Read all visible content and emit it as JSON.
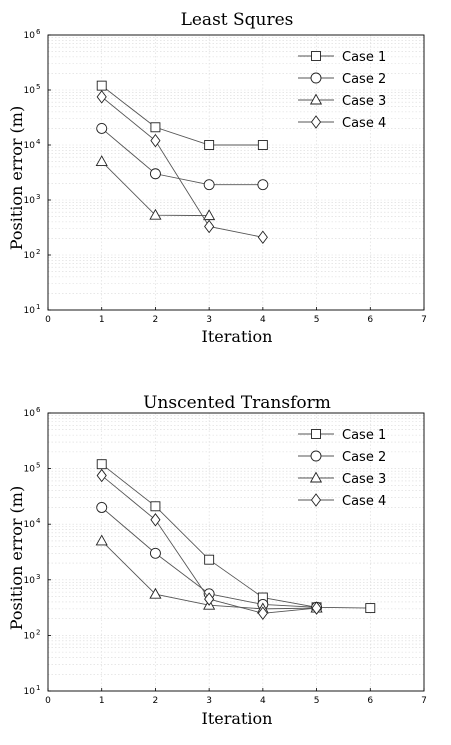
{
  "chart_data": [
    {
      "type": "line",
      "title": "Least Squres",
      "xlabel": "Iteration",
      "ylabel": "Position error (m)",
      "xlim": [
        0,
        7
      ],
      "ylim": [
        10,
        1000000
      ],
      "yscale": "log",
      "x_ticks": [
        0,
        1,
        2,
        3,
        4,
        5,
        6,
        7
      ],
      "y_ticks": [
        1,
        2,
        3,
        4,
        5,
        6
      ],
      "y_tick_base": "10",
      "grid": true,
      "legend_position": "top-right",
      "series": [
        {
          "name": "Case 1",
          "marker": "square",
          "x": [
            1,
            2,
            3,
            4
          ],
          "y": [
            120000,
            21000,
            10000,
            10000
          ]
        },
        {
          "name": "Case 2",
          "marker": "circle",
          "x": [
            1,
            2,
            3,
            4
          ],
          "y": [
            20000,
            3000,
            1900,
            1900
          ]
        },
        {
          "name": "Case 3",
          "marker": "triangle",
          "x": [
            1,
            2,
            3
          ],
          "y": [
            5000,
            530,
            520
          ]
        },
        {
          "name": "Case 4",
          "marker": "diamond",
          "x": [
            1,
            2,
            3,
            4
          ],
          "y": [
            75000,
            12000,
            330,
            210
          ]
        }
      ]
    },
    {
      "type": "line",
      "title": "Unscented Transform",
      "xlabel": "Iteration",
      "ylabel": "Position error (m)",
      "xlim": [
        0,
        7
      ],
      "ylim": [
        10,
        1000000
      ],
      "yscale": "log",
      "x_ticks": [
        0,
        1,
        2,
        3,
        4,
        5,
        6,
        7
      ],
      "y_ticks": [
        1,
        2,
        3,
        4,
        5,
        6
      ],
      "y_tick_base": "10",
      "grid": true,
      "legend_position": "top-right",
      "series": [
        {
          "name": "Case 1",
          "marker": "square",
          "x": [
            1,
            2,
            3,
            4,
            5,
            6
          ],
          "y": [
            120000,
            21000,
            2300,
            480,
            320,
            310
          ]
        },
        {
          "name": "Case 2",
          "marker": "circle",
          "x": [
            1,
            2,
            3,
            4,
            5
          ],
          "y": [
            20000,
            3000,
            560,
            360,
            320
          ]
        },
        {
          "name": "Case 3",
          "marker": "triangle",
          "x": [
            1,
            2,
            3,
            4,
            5
          ],
          "y": [
            5000,
            550,
            350,
            300,
            310
          ]
        },
        {
          "name": "Case 4",
          "marker": "diamond",
          "x": [
            1,
            2,
            3,
            4,
            5
          ],
          "y": [
            75000,
            12000,
            450,
            250,
            310
          ]
        }
      ]
    }
  ]
}
